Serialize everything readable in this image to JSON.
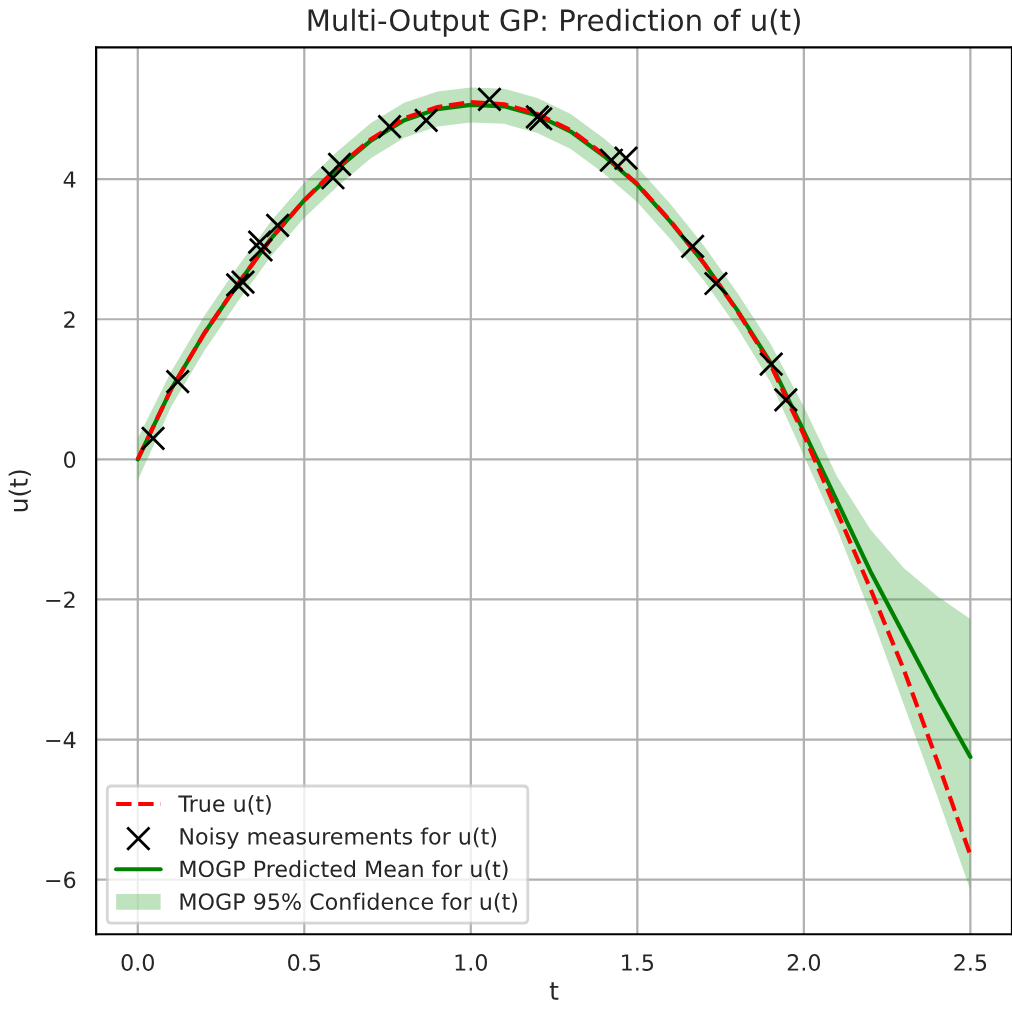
{
  "chart_data": {
    "type": "line",
    "title": "Multi-Output GP: Prediction of u(t)",
    "xlabel": "t",
    "ylabel": "u(t)",
    "xlim": [
      -0.125,
      2.625
    ],
    "ylim": [
      -6.78,
      5.88
    ],
    "xticks": [
      {
        "value": 0,
        "label": "0.0"
      },
      {
        "value": 0.5,
        "label": "0.5"
      },
      {
        "value": 1,
        "label": "1.0"
      },
      {
        "value": 1.5,
        "label": "1.5"
      },
      {
        "value": 2,
        "label": "2.0"
      },
      {
        "value": 2.5,
        "label": "2.5"
      }
    ],
    "yticks": [
      {
        "value": -6,
        "label": "−6"
      },
      {
        "value": -4,
        "label": "−4"
      },
      {
        "value": -2,
        "label": "−2"
      },
      0,
      2,
      4
    ],
    "grid": true,
    "legend": "bottom left",
    "series": [
      {
        "name": "True u(t)",
        "color": "#ff0000",
        "line_style": "dashed",
        "x": [
          0,
          0.1,
          0.2,
          0.3,
          0.4,
          0.5,
          0.6,
          0.7,
          0.8,
          0.9,
          1.0,
          1.1,
          1.2,
          1.3,
          1.4,
          1.5,
          1.6,
          1.7,
          1.8,
          1.9,
          2.0,
          2.1,
          2.2,
          2.3,
          2.4,
          2.5
        ],
        "values": [
          0,
          1.0,
          1.8,
          2.5,
          3.15,
          3.7,
          4.17,
          4.57,
          4.87,
          5.03,
          5.1,
          5.07,
          4.93,
          4.7,
          4.35,
          3.93,
          3.4,
          2.8,
          2.12,
          1.35,
          0.35,
          -0.75,
          -1.85,
          -3.0,
          -4.3,
          -5.65
        ]
      },
      {
        "name": "Noisy measurements for u(t)",
        "type": "scatter",
        "color": "#000000",
        "marker": "cross",
        "x": [
          0.046,
          0.12,
          0.3,
          0.316,
          0.366,
          0.37,
          0.42,
          0.586,
          0.606,
          0.756,
          0.866,
          1.056,
          1.2,
          1.21,
          1.422,
          1.466,
          1.666,
          1.736,
          1.902,
          1.946
        ],
        "values": [
          0.3,
          1.11,
          2.49,
          2.53,
          3.1,
          2.99,
          3.34,
          4.02,
          4.21,
          4.75,
          4.84,
          5.14,
          4.89,
          4.86,
          4.27,
          4.3,
          3.04,
          2.51,
          1.36,
          0.85
        ]
      },
      {
        "name": "MOGP Predicted Mean for u(t)",
        "color": "#008000",
        "line_style": "solid",
        "x": [
          0,
          0.1,
          0.2,
          0.3,
          0.4,
          0.5,
          0.6,
          0.7,
          0.8,
          0.9,
          1.0,
          1.1,
          1.2,
          1.3,
          1.4,
          1.5,
          1.6,
          1.7,
          1.8,
          1.9,
          2.0,
          2.1,
          2.2,
          2.3,
          2.4,
          2.5
        ],
        "values": [
          0,
          1.0,
          1.8,
          2.5,
          3.15,
          3.7,
          4.15,
          4.55,
          4.84,
          5.0,
          5.06,
          5.04,
          4.91,
          4.68,
          4.33,
          3.92,
          3.39,
          2.8,
          2.13,
          1.38,
          0.4,
          -0.6,
          -1.6,
          -2.5,
          -3.4,
          -4.25
        ],
        "lower": [
          -0.3,
          0.75,
          1.55,
          2.25,
          2.9,
          3.45,
          3.9,
          4.3,
          4.59,
          4.75,
          4.81,
          4.79,
          4.66,
          4.43,
          4.08,
          3.67,
          3.14,
          2.55,
          1.88,
          1.1,
          0.05,
          -1.0,
          -2.2,
          -3.5,
          -4.8,
          -6.15
        ],
        "upper": [
          0.3,
          1.25,
          2.05,
          2.75,
          3.4,
          3.95,
          4.4,
          4.8,
          5.09,
          5.25,
          5.31,
          5.29,
          5.16,
          4.93,
          4.58,
          4.17,
          3.64,
          3.05,
          2.38,
          1.65,
          0.75,
          -0.25,
          -1.0,
          -1.55,
          -1.95,
          -2.28
        ]
      },
      {
        "name": "MOGP 95% Confidence for u(t)",
        "type": "area",
        "color": "#2ca02c"
      }
    ]
  }
}
